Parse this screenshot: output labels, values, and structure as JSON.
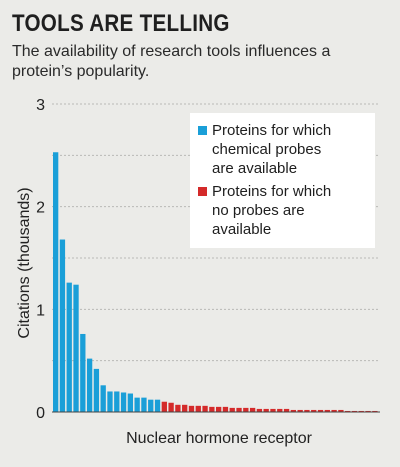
{
  "title": "TOOLS ARE TELLING",
  "subtitle": "The availability of research tools influences a protein’s popularity.",
  "colors": {
    "probes": "#1a9fd8",
    "no_probes": "#d42a2a",
    "background": "#ebebe8",
    "grid": "#b9b9b6"
  },
  "chart_data": {
    "type": "bar",
    "xlabel": "Nuclear hormone receptor",
    "ylabel": "Citations (thousands)",
    "ylim": [
      0,
      3
    ],
    "yticks": [
      "0",
      "1",
      "2",
      "3"
    ],
    "grid": true,
    "legend_position": "top-right",
    "series": [
      {
        "name": "Proteins for which chemical probes are available",
        "values": [
          2.53,
          1.68,
          1.26,
          1.24,
          0.76,
          0.52,
          0.42,
          0.26,
          0.2,
          0.2,
          0.19,
          0.18,
          0.14,
          0.14,
          0.12,
          0.12
        ]
      },
      {
        "name": "Proteins for which no probes are available",
        "values": [
          0.1,
          0.09,
          0.07,
          0.07,
          0.06,
          0.06,
          0.06,
          0.05,
          0.05,
          0.05,
          0.04,
          0.04,
          0.04,
          0.04,
          0.03,
          0.03,
          0.03,
          0.03,
          0.03,
          0.02,
          0.02,
          0.02,
          0.02,
          0.02,
          0.02,
          0.02,
          0.02,
          0.01,
          0.01,
          0.01,
          0.01,
          0.01
        ]
      }
    ],
    "legend": [
      {
        "lines": [
          "Proteins for which",
          "chemical probes",
          "are available"
        ]
      },
      {
        "lines": [
          "Proteins for which",
          "no probes are",
          "available"
        ]
      }
    ]
  }
}
